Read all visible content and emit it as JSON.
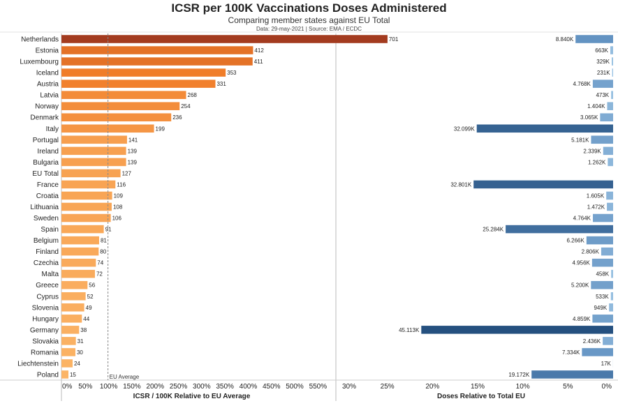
{
  "title": "ICSR per 100K Vaccinations Doses Administered",
  "subtitle": "Comparing member states against EU Total",
  "note": "Data: 29-may-2021 | Source: EMA / ECDC",
  "chart_data": [
    {
      "type": "bar",
      "orientation": "horizontal",
      "xlabel": "ICSR / 100K Relative to EU Average",
      "ticks": [
        "0%",
        "50%",
        "100%",
        "150%",
        "200%",
        "250%",
        "300%",
        "350%",
        "400%",
        "450%",
        "500%",
        "550%"
      ],
      "xlim": [
        0,
        590
      ],
      "reference_line": {
        "value": 100,
        "label": "EU Average"
      },
      "categories": [
        "Netherlands",
        "Estonia",
        "Luxembourg",
        "Iceland",
        "Austria",
        "Latvia",
        "Norway",
        "Denmark",
        "Italy",
        "Portugal",
        "Ireland",
        "Bulgaria",
        "EU Total",
        "France",
        "Croatia",
        "Lithuania",
        "Sweden",
        "Spain",
        "Belgium",
        "Finland",
        "Czechia",
        "Malta",
        "Greece",
        "Cyprus",
        "Slovenia",
        "Hungary",
        "Germany",
        "Slovakia",
        "Romania",
        "Liechtenstein",
        "Poland"
      ],
      "values": [
        701,
        412,
        411,
        353,
        331,
        268,
        254,
        236,
        199,
        141,
        139,
        139,
        127,
        116,
        109,
        108,
        106,
        91,
        81,
        80,
        74,
        72,
        56,
        52,
        49,
        44,
        38,
        31,
        30,
        24,
        15
      ],
      "value_labels": [
        "701",
        "412",
        "411",
        "353",
        "331",
        "268",
        "254",
        "236",
        "199",
        "141",
        "139",
        "139",
        "127",
        "116",
        "109",
        "108",
        "106",
        "91",
        "81",
        "80",
        "74",
        "72",
        "56",
        "52",
        "49",
        "44",
        "38",
        "31",
        "30",
        "24",
        "15"
      ],
      "color_scale": [
        "#fbb466",
        "#f07c28",
        "#a33b1f"
      ]
    },
    {
      "type": "bar",
      "orientation": "horizontal",
      "direction": "right-to-left",
      "xlabel": "Doses Relative to Total EU",
      "ticks": [
        "30%",
        "25%",
        "20%",
        "15%",
        "10%",
        "5%",
        "0%"
      ],
      "xlim": [
        0,
        30
      ],
      "values_pct": [
        4.16,
        0.31,
        0.155,
        0.11,
        2.25,
        0.22,
        0.66,
        1.44,
        15.1,
        2.44,
        1.1,
        0.59,
        0,
        15.45,
        0.76,
        0.69,
        2.24,
        11.9,
        2.95,
        1.32,
        2.33,
        0.22,
        2.45,
        0.25,
        0.45,
        2.29,
        21.24,
        1.15,
        3.45,
        0.01,
        9.03
      ],
      "value_labels": [
        "8.840K",
        "663K",
        "329K",
        "231K",
        "4.768K",
        "473K",
        "1.404K",
        "3.065K",
        "32.099K",
        "5.181K",
        "2.339K",
        "1.262K",
        "",
        "32.801K",
        "1.605K",
        "1.472K",
        "4.764K",
        "25.284K",
        "6.266K",
        "2.806K",
        "4.956K",
        "458K",
        "5.200K",
        "533K",
        "949K",
        "4.859K",
        "45.113K",
        "2.436K",
        "7.334K",
        "17K",
        "19.172K"
      ],
      "color_scale": [
        "#a7cdea",
        "#5a8bbd",
        "#25507f"
      ]
    }
  ]
}
